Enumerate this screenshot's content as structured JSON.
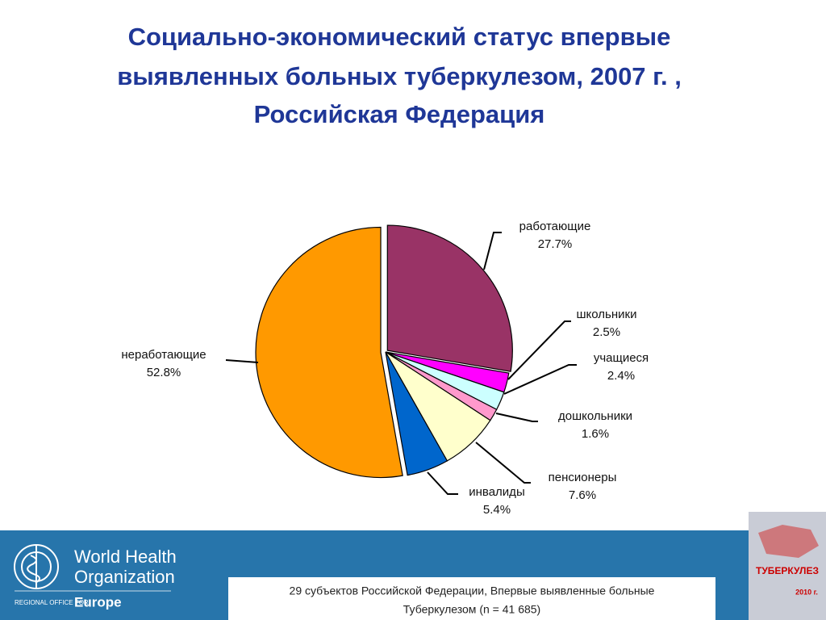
{
  "chart_data": {
    "type": "pie",
    "title": [
      "Социально-экономический статус впервые",
      "выявленных больных туберкулезом, 2007 г. ,",
      "Российская Федерация"
    ],
    "categories": [
      "работающие",
      "школьники",
      "учащиеся",
      "дошкольники",
      "пенсионеры",
      "инвалиды",
      "неработающие"
    ],
    "values": [
      27.7,
      2.5,
      2.4,
      1.6,
      7.6,
      5.4,
      52.8
    ],
    "value_labels": [
      "27.7%",
      "2.5%",
      "2.4%",
      "1.6%",
      "7.6%",
      "5.4%",
      "52.8%"
    ],
    "colors": [
      "#993366",
      "#ff00ff",
      "#ccffff",
      "#ff99cc",
      "#ffffcc",
      "#0066cc",
      "#ff9900"
    ]
  },
  "footer": {
    "note": [
      "29 субъектов Российской Федерации, Впервые выявленные больные",
      "Туберкулезом (n = 41 685)"
    ],
    "logo": [
      "World Health",
      "Organization",
      "REGIONAL OFFICE FOR",
      "Europe"
    ],
    "book": [
      "ТУБЕРКУЛЕЗ",
      "2010 г."
    ]
  }
}
